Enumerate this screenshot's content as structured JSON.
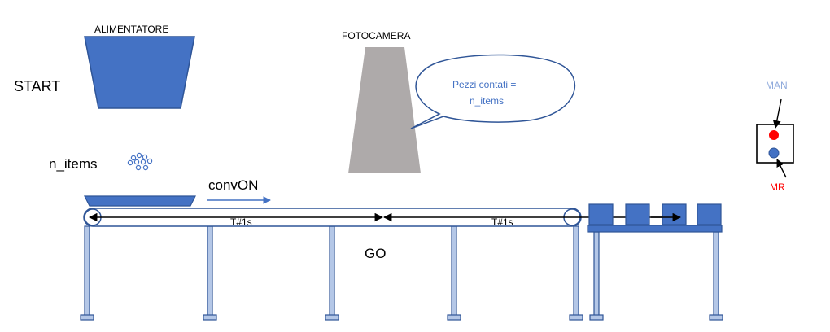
{
  "labels": {
    "feeder": "ALIMENTATORE",
    "camera": "FOTOCAMERA",
    "start": "START",
    "n_items": "n_items",
    "conv_on": "convON",
    "timer_left": "T#1s",
    "timer_right": "T#1s",
    "go": "GO",
    "man": "MAN",
    "mr": "MR"
  },
  "bubble": {
    "line1": "Pezzi contati =",
    "line2": "n_items"
  },
  "colors": {
    "blue_fill": "#4472C4",
    "blue_dark": "#2F5597",
    "leg_fill": "#B4C7E7",
    "camera_gray": "#AEAAAA",
    "bubble_text": "#4472C4",
    "man_text": "#8FAADC",
    "mr_text": "#FF0000",
    "red_dot": "#FF0000"
  }
}
